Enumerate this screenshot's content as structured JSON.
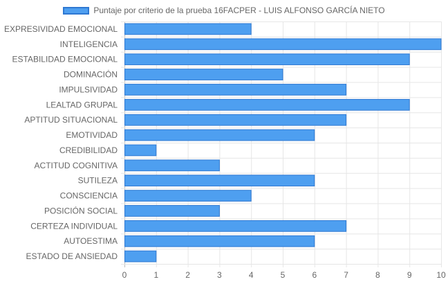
{
  "chart_data": {
    "type": "bar",
    "orientation": "horizontal",
    "categories": [
      "EXPRESIVIDAD EMOCIONAL",
      "INTELIGENCIA",
      "ESTABILIDAD EMOCIONAL",
      "DOMINACIÓN",
      "IMPULSIVIDAD",
      "LEALTAD GRUPAL",
      "APTITUD SITUACIONAL",
      "EMOTIVIDAD",
      "CREDIBILIDAD",
      "ACTITUD COGNITIVA",
      "SUTILEZA",
      "CONSCIENCIA",
      "POSICIÓN SOCIAL",
      "CERTEZA INDIVIDUAL",
      "AUTOESTIMA",
      "ESTADO DE ANSIEDAD"
    ],
    "series": [
      {
        "name": "Puntaje por criterio de la prueba 16FACPER - LUIS ALFONSO GARCÍA NIETO",
        "values": [
          4,
          10,
          9,
          5,
          7,
          9,
          7,
          6,
          1,
          3,
          6,
          4,
          3,
          7,
          6,
          1
        ]
      }
    ],
    "xlim": [
      0,
      10
    ],
    "x_ticks": [
      "0",
      "1",
      "2",
      "3",
      "4",
      "5",
      "6",
      "7",
      "8",
      "9",
      "10"
    ],
    "grid": true,
    "legend_position": "top",
    "colors": {
      "bar_fill": "#4e9ff0",
      "bar_border": "#2e78d2",
      "grid": "#e6e6e6",
      "axis": "#bdbdbd",
      "text": "#666666"
    }
  }
}
